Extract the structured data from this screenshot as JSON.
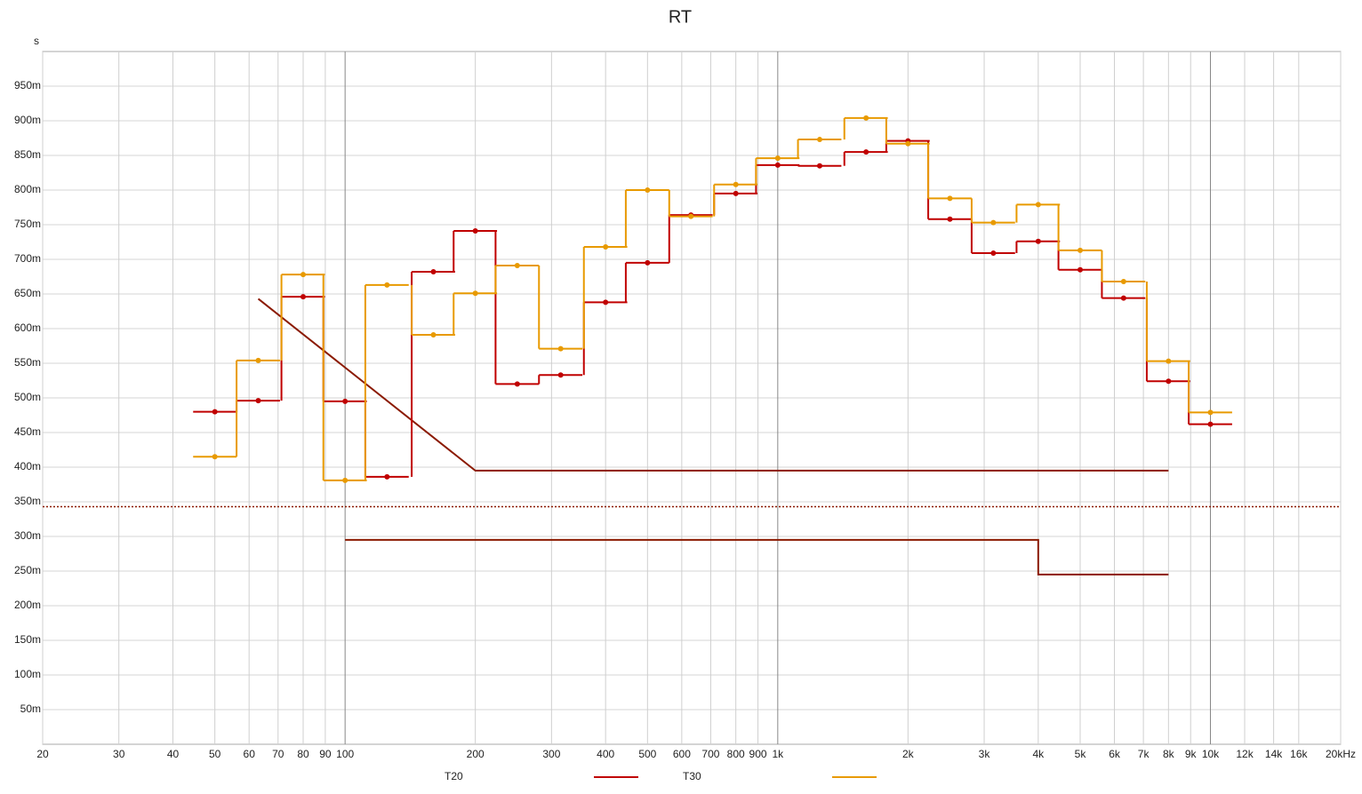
{
  "chart_data": {
    "type": "step",
    "title": "RT",
    "y_unit": "s",
    "log_x": true,
    "grid": true,
    "x": [
      50,
      63,
      80,
      100,
      125,
      160,
      200,
      250,
      315,
      400,
      500,
      630,
      800,
      1000,
      1250,
      1600,
      2000,
      2500,
      3150,
      4000,
      5000,
      6300,
      8000,
      10000
    ],
    "series": [
      {
        "name": "T20",
        "color": "#c00000",
        "values": [
          0.48,
          0.496,
          0.646,
          0.495,
          0.386,
          0.682,
          0.741,
          0.52,
          0.533,
          0.638,
          0.695,
          0.764,
          0.795,
          0.836,
          0.835,
          0.855,
          0.871,
          0.758,
          0.709,
          0.726,
          0.685,
          0.644,
          0.524,
          0.462
        ]
      },
      {
        "name": "T30",
        "color": "#e89a00",
        "values": [
          0.415,
          0.554,
          0.678,
          0.381,
          0.663,
          0.591,
          0.651,
          0.691,
          0.571,
          0.718,
          0.8,
          0.762,
          0.808,
          0.846,
          0.873,
          0.904,
          0.867,
          0.788,
          0.753,
          0.779,
          0.713,
          0.668,
          0.553,
          0.479
        ]
      }
    ],
    "limit_lines": [
      {
        "color": "#8b1a00",
        "x": [
          63,
          200,
          8000
        ],
        "values": [
          0.643,
          0.395,
          0.395
        ]
      },
      {
        "color": "#8b1a00",
        "x": [
          100,
          4000,
          4000,
          8000
        ],
        "values": [
          0.295,
          0.295,
          0.245,
          0.245
        ]
      }
    ],
    "hline": {
      "value": 0.343,
      "color": "#8b1a00",
      "style": "dotted"
    },
    "xlim": [
      20,
      20000
    ],
    "ylim": [
      0,
      1
    ],
    "xticks": [
      20,
      30,
      40,
      50,
      60,
      70,
      80,
      90,
      100,
      200,
      300,
      400,
      500,
      600,
      700,
      800,
      900,
      {
        "value": 1000,
        "label": "1k"
      },
      {
        "value": 2000,
        "label": "2k"
      },
      {
        "value": 3000,
        "label": "3k"
      },
      {
        "value": 4000,
        "label": "4k"
      },
      {
        "value": 5000,
        "label": "5k"
      },
      {
        "value": 6000,
        "label": "6k"
      },
      {
        "value": 7000,
        "label": "7k"
      },
      {
        "value": 8000,
        "label": "8k"
      },
      {
        "value": 9000,
        "label": "9k"
      },
      {
        "value": 10000,
        "label": "10k"
      },
      {
        "value": 12000,
        "label": "12k"
      },
      {
        "value": 14000,
        "label": "14k"
      },
      {
        "value": 16000,
        "label": "16k"
      },
      {
        "value": 20000,
        "label": "20kHz"
      }
    ],
    "yticks": [
      {
        "value": 0.05,
        "label": "50m"
      },
      {
        "value": 0.1,
        "label": "100m"
      },
      {
        "value": 0.15,
        "label": "150m"
      },
      {
        "value": 0.2,
        "label": "200m"
      },
      {
        "value": 0.25,
        "label": "250m"
      },
      {
        "value": 0.3,
        "label": "300m"
      },
      {
        "value": 0.35,
        "label": "350m"
      },
      {
        "value": 0.4,
        "label": "400m"
      },
      {
        "value": 0.45,
        "label": "450m"
      },
      {
        "value": 0.5,
        "label": "500m"
      },
      {
        "value": 0.55,
        "label": "550m"
      },
      {
        "value": 0.6,
        "label": "600m"
      },
      {
        "value": 0.65,
        "label": "650m"
      },
      {
        "value": 0.7,
        "label": "700m"
      },
      {
        "value": 0.75,
        "label": "750m"
      },
      {
        "value": 0.8,
        "label": "800m"
      },
      {
        "value": 0.85,
        "label": "850m"
      },
      {
        "value": 0.9,
        "label": "900m"
      },
      {
        "value": 0.95,
        "label": "950m"
      }
    ]
  }
}
